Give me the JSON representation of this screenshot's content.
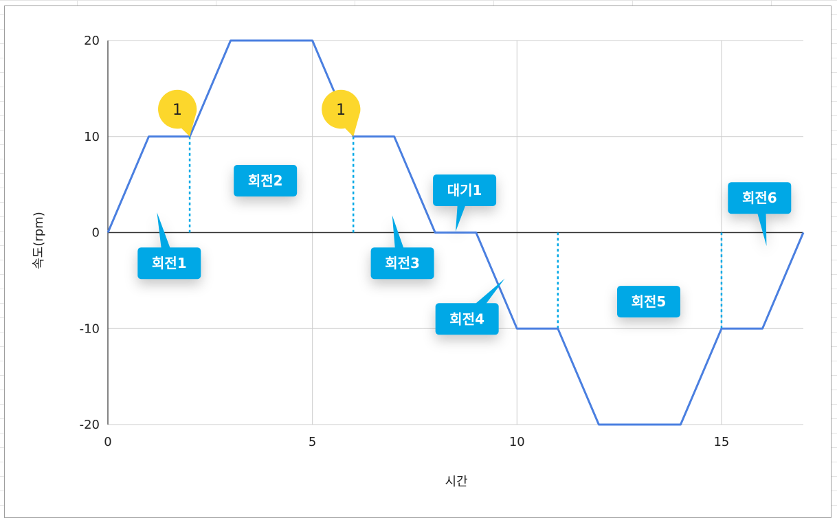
{
  "chart_data": {
    "type": "line",
    "xlabel": "시간",
    "ylabel": "속도(rpm)",
    "xlim": [
      0,
      17
    ],
    "ylim": [
      -20,
      20
    ],
    "x_ticks": [
      0,
      5,
      10,
      15
    ],
    "y_ticks": [
      20,
      10,
      0,
      -10,
      -20
    ],
    "grid": true,
    "series": [
      {
        "color": "#4a7fe0",
        "points": [
          [
            0,
            0
          ],
          [
            1,
            10
          ],
          [
            2,
            10
          ],
          [
            3,
            20
          ],
          [
            5,
            20
          ],
          [
            6,
            10
          ],
          [
            7,
            10
          ],
          [
            8,
            0
          ],
          [
            9,
            0
          ],
          [
            10,
            -10
          ],
          [
            11,
            -10
          ],
          [
            12,
            -20
          ],
          [
            14,
            -20
          ],
          [
            15,
            -10
          ],
          [
            16,
            -10
          ],
          [
            17,
            0
          ]
        ]
      }
    ],
    "markers": {
      "color": "#00a8e6",
      "x_positions": [
        2,
        6,
        11,
        15
      ]
    },
    "callouts": [
      {
        "text": "회전1",
        "box_x": 1.5,
        "box_y": -3.2,
        "pointer_x": 1.2,
        "pointer_y": 2.1
      },
      {
        "text": "회전2",
        "box_x": 3.85,
        "box_y": 5.4,
        "pointer_x": 3.85,
        "pointer_y": 5.4
      },
      {
        "text": "회전3",
        "box_x": 7.2,
        "box_y": -3.2,
        "pointer_x": 6.95,
        "pointer_y": 1.8
      },
      {
        "text": "대기1",
        "box_x": 8.72,
        "box_y": 4.4,
        "pointer_x": 8.5,
        "pointer_y": 0.1
      },
      {
        "text": "회전4",
        "box_x": 8.78,
        "box_y": -9.0,
        "pointer_x": 9.7,
        "pointer_y": -4.8
      },
      {
        "text": "회전5",
        "box_x": 13.22,
        "box_y": -7.2,
        "pointer_x": 13.22,
        "pointer_y": -7.2
      },
      {
        "text": "회전6",
        "box_x": 15.93,
        "box_y": 3.6,
        "pointer_x": 16.1,
        "pointer_y": -1.4
      }
    ],
    "pins": [
      {
        "text": "1",
        "x": 2,
        "y": 10,
        "color": "#fcd72c"
      },
      {
        "text": "1",
        "x": 6,
        "y": 10,
        "color": "#fcd72c"
      }
    ]
  }
}
